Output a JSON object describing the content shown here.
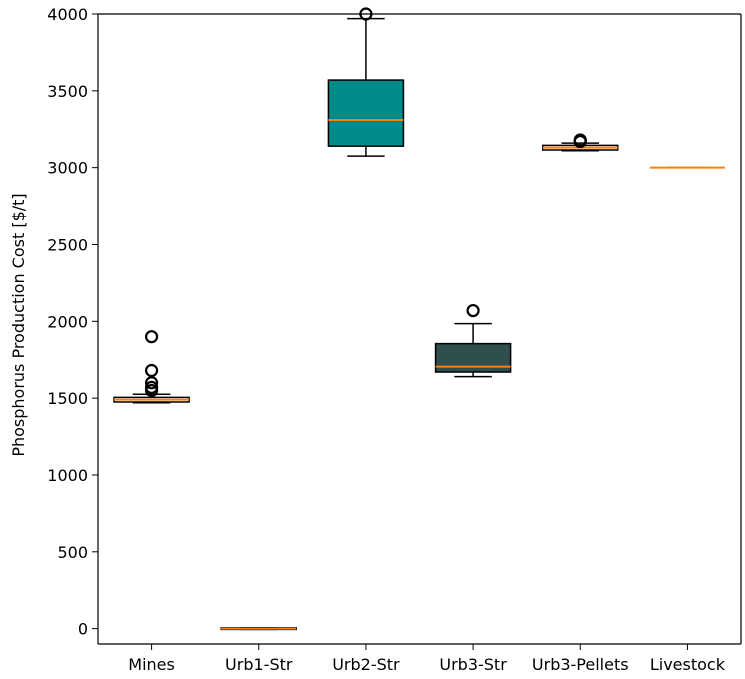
{
  "chart_data": {
    "type": "box",
    "title": "",
    "xlabel": "",
    "ylabel": "Phosphorus Production Cost [$/t]",
    "ylim": [
      -100,
      4000
    ],
    "yticks": [
      0,
      500,
      1000,
      1500,
      2000,
      2500,
      3000,
      3500,
      4000
    ],
    "categories": [
      "Mines",
      "Urb1-Str",
      "Urb2-Str",
      "Urb3-Str",
      "Urb3-Pellets",
      "Livestock"
    ],
    "boxes": [
      {
        "label": "Mines",
        "q1": 1475,
        "median": 1490,
        "q3": 1505,
        "whisker_low": 1470,
        "whisker_high": 1525,
        "outliers": [
          1550,
          1570,
          1600,
          1680,
          1900
        ],
        "color": "#ffffff"
      },
      {
        "label": "Urb1-Str",
        "q1": -5,
        "median": 0,
        "q3": 5,
        "whisker_low": -5,
        "whisker_high": 5,
        "outliers": [],
        "color": "#ffffff"
      },
      {
        "label": "Urb2-Str",
        "q1": 3140,
        "median": 3310,
        "q3": 3570,
        "whisker_low": 3075,
        "whisker_high": 3970,
        "outliers": [
          4000
        ],
        "color": "#008b8b"
      },
      {
        "label": "Urb3-Str",
        "q1": 1670,
        "median": 1705,
        "q3": 1855,
        "whisker_low": 1640,
        "whisker_high": 1985,
        "outliers": [
          2070
        ],
        "color": "#2f4f4f"
      },
      {
        "label": "Urb3-Pellets",
        "q1": 3115,
        "median": 3130,
        "q3": 3145,
        "whisker_low": 3110,
        "whisker_high": 3160,
        "outliers": [
          3170,
          3180
        ],
        "color": "#ffffff"
      },
      {
        "label": "Livestock",
        "q1": 3000,
        "median": 3000,
        "q3": 3000,
        "whisker_low": 3000,
        "whisker_high": 3000,
        "outliers": [],
        "color": "#ffffff"
      }
    ],
    "median_color": "#ff7f0e",
    "grid": false,
    "legend": "none"
  }
}
